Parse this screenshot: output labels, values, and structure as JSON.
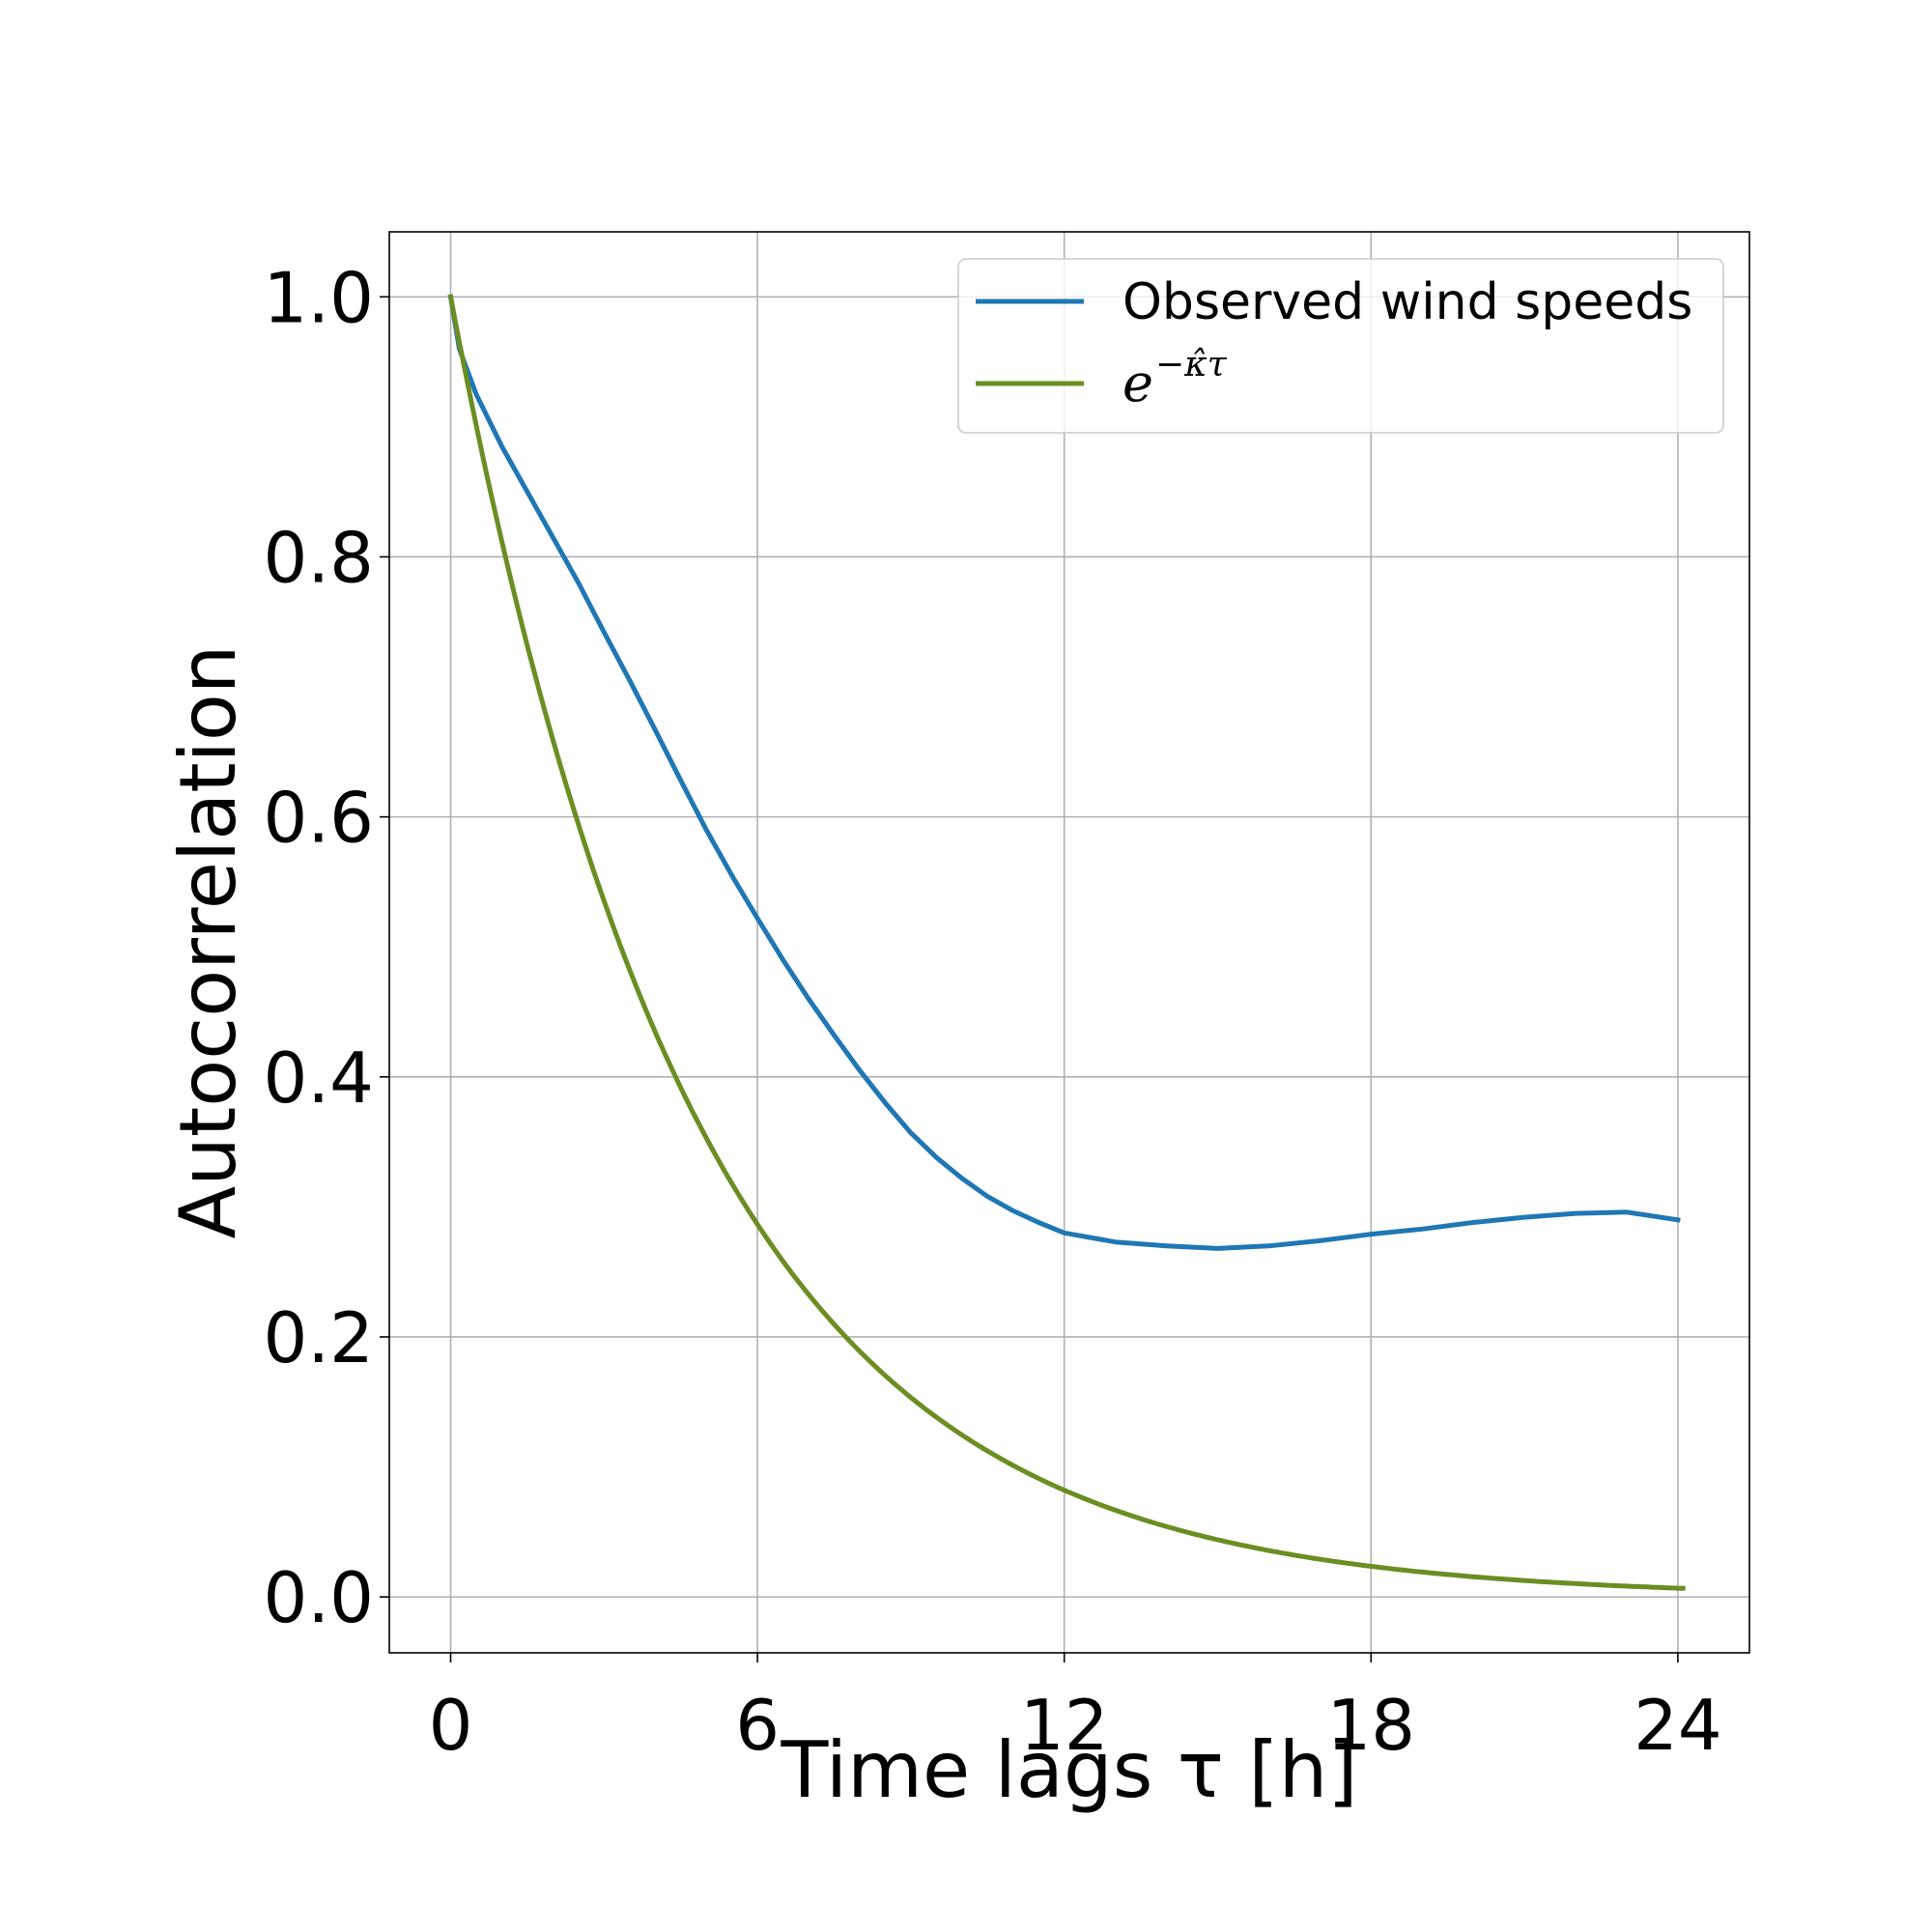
{
  "chart_data": {
    "type": "line",
    "title": "",
    "xlabel": "Time lags τ [h]",
    "ylabel": "Autocorrelation",
    "xlim": [
      -1.2,
      25.4
    ],
    "ylim": [
      -0.043,
      1.05
    ],
    "xticks": [
      0,
      6,
      12,
      18,
      24
    ],
    "yticks": [
      0.0,
      0.2,
      0.4,
      0.6,
      0.8,
      1.0
    ],
    "xtick_labels": [
      "0",
      "6",
      "12",
      "18",
      "24"
    ],
    "ytick_labels": [
      "0.0",
      "0.2",
      "0.4",
      "0.6",
      "0.8",
      "1.0"
    ],
    "grid": true,
    "legend_position": "top-right",
    "series": [
      {
        "name": "Observed wind speeds",
        "color": "#1f77b4",
        "x": [
          0,
          0.17,
          0.5,
          1,
          1.5,
          2,
          2.5,
          3,
          3.5,
          4,
          4.5,
          5,
          5.5,
          6,
          6.5,
          7,
          7.5,
          8,
          8.5,
          9,
          9.5,
          10,
          10.5,
          11,
          11.5,
          12,
          13,
          14,
          15,
          16,
          17,
          18,
          19,
          20,
          21,
          22,
          23,
          24
        ],
        "y": [
          1.0,
          0.96,
          0.925,
          0.885,
          0.85,
          0.815,
          0.78,
          0.742,
          0.705,
          0.667,
          0.628,
          0.59,
          0.555,
          0.522,
          0.49,
          0.46,
          0.432,
          0.405,
          0.38,
          0.357,
          0.338,
          0.322,
          0.308,
          0.297,
          0.288,
          0.28,
          0.273,
          0.27,
          0.268,
          0.27,
          0.274,
          0.279,
          0.283,
          0.288,
          0.292,
          0.295,
          0.296,
          0.29
        ]
      },
      {
        "name": "e^{-κ̂τ}",
        "color": "#6b8e23",
        "function": "exp",
        "kappa": 0.2083,
        "x_range": [
          0,
          24.1
        ]
      }
    ]
  },
  "legend": {
    "entries": [
      {
        "label": "Observed wind speeds",
        "color": "#1f77b4"
      },
      {
        "base": "e",
        "exponent": "−κ̂τ",
        "color": "#6b8e23"
      }
    ]
  }
}
